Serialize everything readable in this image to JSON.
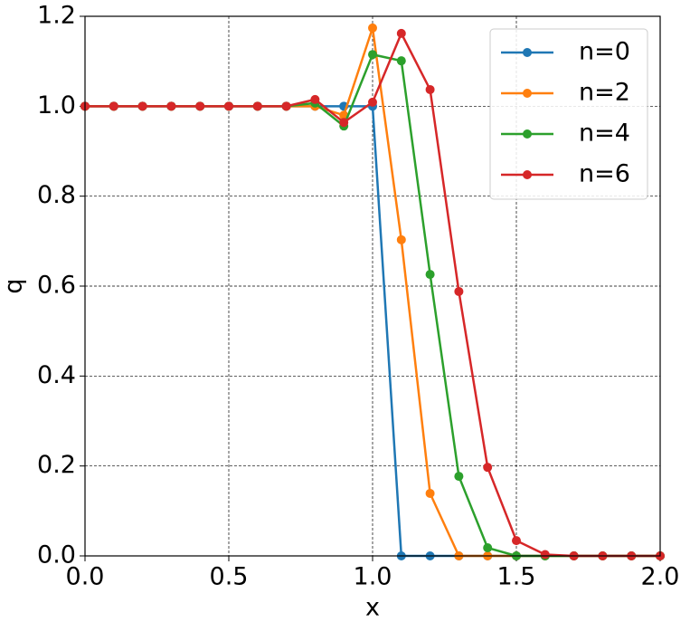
{
  "chart_data": {
    "type": "line",
    "xlabel": "x",
    "ylabel": "q",
    "x": [
      0,
      0.1,
      0.2,
      0.3,
      0.4,
      0.5,
      0.6,
      0.7,
      0.8,
      0.9,
      1.0,
      1.1,
      1.2,
      1.3,
      1.4,
      1.5,
      1.6,
      1.7,
      1.8,
      1.9,
      2.0
    ],
    "series": [
      {
        "name": "n=0",
        "color": "#1f77b4",
        "values": [
          1,
          1,
          1,
          1,
          1,
          1,
          1,
          1,
          1,
          1,
          1,
          0,
          0,
          0,
          0,
          0,
          0,
          0,
          0,
          0,
          0
        ]
      },
      {
        "name": "n=2",
        "color": "#ff7f0e",
        "values": [
          1,
          1,
          1,
          1,
          1,
          1,
          1,
          1,
          1.0,
          0.98,
          1.174,
          0.703,
          0.139,
          0,
          0,
          0,
          0,
          0,
          0,
          0,
          0
        ]
      },
      {
        "name": "n=4",
        "color": "#2ca02c",
        "values": [
          1,
          1,
          1,
          1,
          1,
          1,
          1,
          1,
          1.007,
          0.956,
          1.115,
          1.101,
          0.626,
          0.177,
          0.018,
          0,
          0,
          0,
          0,
          0,
          0
        ]
      },
      {
        "name": "n=6",
        "color": "#d62728",
        "values": [
          1,
          1,
          1,
          1,
          1,
          1,
          1,
          1,
          1.015,
          0.964,
          1.009,
          1.162,
          1.037,
          0.588,
          0.197,
          0.034,
          0.003,
          0,
          0,
          0,
          0
        ]
      }
    ],
    "xlim": [
      0,
      2
    ],
    "xticks": [
      {
        "value": 0,
        "label": "0.0"
      },
      0.5,
      {
        "value": 1,
        "label": "1.0"
      },
      1.5,
      {
        "value": 2,
        "label": "2.0"
      }
    ],
    "ylim": [
      0,
      1.2
    ],
    "yticks": [
      {
        "value": 0,
        "label": "0.0"
      },
      0.2,
      0.4,
      0.6,
      0.8,
      {
        "value": 1,
        "label": "1.0"
      },
      1.2
    ],
    "grid": true,
    "legend": "upper right"
  }
}
